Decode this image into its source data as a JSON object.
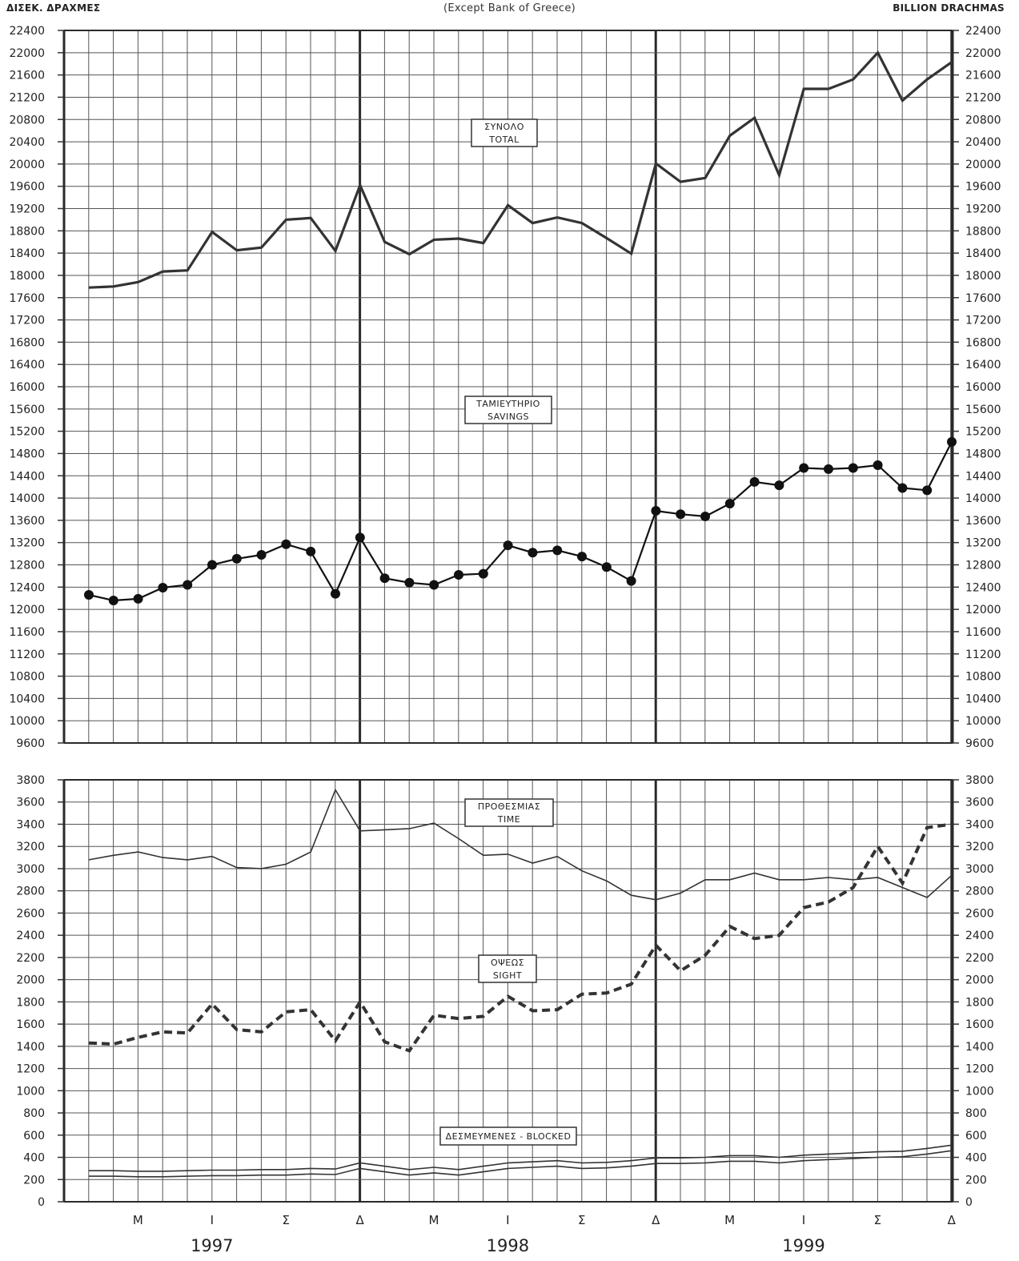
{
  "header": {
    "left_unit": "ΔΙΣΕΚ. ΔΡΑΧΜΕΣ",
    "subtitle": "(Except Bank of Greece)",
    "right_unit": "BILLION DRACHMAS"
  },
  "x_axis": {
    "month_labels": [
      "Μ",
      "Ι",
      "Σ",
      "Δ",
      "Μ",
      "Ι",
      "Σ",
      "Δ",
      "Μ",
      "Ι",
      "Σ",
      "Δ"
    ],
    "years": [
      "1997",
      "1998",
      "1999"
    ]
  },
  "chart_data": [
    {
      "type": "line",
      "panel": "top",
      "x": [
        "Jan 1997",
        "Feb 1997",
        "Mar 1997",
        "Apr 1997",
        "May 1997",
        "Jun 1997",
        "Jul 1997",
        "Aug 1997",
        "Sep 1997",
        "Oct 1997",
        "Nov 1997",
        "Dec 1997",
        "Jan 1998",
        "Feb 1998",
        "Mar 1998",
        "Apr 1998",
        "May 1998",
        "Jun 1998",
        "Jul 1998",
        "Aug 1998",
        "Sep 1998",
        "Oct 1998",
        "Nov 1998",
        "Dec 1998",
        "Jan 1999",
        "Feb 1999",
        "Mar 1999",
        "Apr 1999",
        "May 1999",
        "Jun 1999",
        "Jul 1999",
        "Aug 1999",
        "Sep 1999",
        "Oct 1999",
        "Nov 1999",
        "Dec 1999"
      ],
      "ylim": [
        9600,
        22400
      ],
      "yticks": [
        "22400",
        "22000",
        "21600",
        "21200",
        "20800",
        "20400",
        "20000",
        "19600",
        "19200",
        "18800",
        "18400",
        "18000",
        "17600",
        "17200",
        "16800",
        "16400",
        "16000",
        "15600",
        "15200",
        "14800",
        "14400",
        "14000",
        "13600",
        "13200",
        "12800",
        "12400",
        "12000",
        "11600",
        "11200",
        "10800",
        "10400",
        "10000",
        "9600"
      ],
      "grid": true,
      "series": [
        {
          "name": "ΣΥΝΟΛΟ TOTAL",
          "label_lines": [
            "ΣΥΝΟΛΟ",
            "TOTAL"
          ],
          "style": "thick",
          "values": [
            17780,
            17800,
            17880,
            18070,
            18090,
            18780,
            18450,
            18500,
            19000,
            19030,
            18440,
            19620,
            18600,
            18380,
            18640,
            18660,
            18580,
            19260,
            18940,
            19040,
            18940,
            18670,
            18390,
            20010,
            19680,
            19750,
            20510,
            20830,
            19800,
            21350,
            21350,
            21520,
            22000,
            21140,
            21520,
            21830
          ]
        },
        {
          "name": "ΤΑΜΙΕΥΤΗΡΙΟ SAVINGS",
          "label_lines": [
            "ΤΑΜΙΕΥΤΗΡΙΟ",
            "SAVINGS"
          ],
          "style": "markers",
          "values": [
            12260,
            12160,
            12190,
            12390,
            12440,
            12800,
            12910,
            12980,
            13170,
            13040,
            12280,
            13290,
            12560,
            12480,
            12440,
            12620,
            12640,
            13150,
            13020,
            13060,
            12950,
            12760,
            12510,
            13770,
            13710,
            13670,
            13900,
            14290,
            14230,
            14540,
            14520,
            14540,
            14590,
            14180,
            14140,
            15010
          ]
        }
      ]
    },
    {
      "type": "line",
      "panel": "bottom",
      "x": [
        "Jan 1997",
        "Feb 1997",
        "Mar 1997",
        "Apr 1997",
        "May 1997",
        "Jun 1997",
        "Jul 1997",
        "Aug 1997",
        "Sep 1997",
        "Oct 1997",
        "Nov 1997",
        "Dec 1997",
        "Jan 1998",
        "Feb 1998",
        "Mar 1998",
        "Apr 1998",
        "May 1998",
        "Jun 1998",
        "Jul 1998",
        "Aug 1998",
        "Sep 1998",
        "Oct 1998",
        "Nov 1998",
        "Dec 1998",
        "Jan 1999",
        "Feb 1999",
        "Mar 1999",
        "Apr 1999",
        "May 1999",
        "Jun 1999",
        "Jul 1999",
        "Aug 1999",
        "Sep 1999",
        "Oct 1999",
        "Nov 1999",
        "Dec 1999"
      ],
      "ylim": [
        0,
        3800
      ],
      "yticks": [
        "3800",
        "3600",
        "3400",
        "3200",
        "3000",
        "2800",
        "2600",
        "2400",
        "2200",
        "2000",
        "1800",
        "1600",
        "1400",
        "1200",
        "1000",
        "800",
        "600",
        "400",
        "200",
        "0"
      ],
      "grid": true,
      "series": [
        {
          "name": "ΠΡΟΘΕΣΜΙΑΣ TIME",
          "label_lines": [
            "ΠΡΟΘΕΣΜΙΑΣ",
            "TIME"
          ],
          "style": "thin",
          "values": [
            3080,
            3120,
            3150,
            3100,
            3080,
            3110,
            3010,
            3000,
            3040,
            3150,
            3710,
            3340,
            3350,
            3360,
            3410,
            3270,
            3120,
            3130,
            3050,
            3110,
            2980,
            2890,
            2760,
            2720,
            2780,
            2900,
            2900,
            2960,
            2900,
            2900,
            2920,
            2900,
            2920,
            2830,
            2740,
            2940
          ]
        },
        {
          "name": "ΟΨΕΩΣ SIGHT",
          "label_lines": [
            "ΟΨΕΩΣ",
            "SIGHT"
          ],
          "style": "dashed",
          "values": [
            1430,
            1420,
            1480,
            1530,
            1520,
            1780,
            1550,
            1530,
            1710,
            1730,
            1450,
            1800,
            1440,
            1360,
            1680,
            1650,
            1670,
            1850,
            1720,
            1730,
            1870,
            1880,
            1960,
            2310,
            2080,
            2220,
            2480,
            2370,
            2400,
            2650,
            2700,
            2830,
            3200,
            2870,
            3370,
            3400
          ]
        },
        {
          "name": "ΔΕΣΜΕΥΜΕΝΕΣ - BLOCKED",
          "label_lines": [
            "ΔΕΣΜΕΥΜΕΝΕΣ - BLOCKED"
          ],
          "style": "double",
          "values": [
            270,
            270,
            265,
            265,
            270,
            275,
            275,
            280,
            280,
            290,
            285,
            340,
            310,
            280,
            300,
            280,
            310,
            340,
            350,
            360,
            340,
            345,
            360,
            385,
            385,
            390,
            405,
            405,
            390,
            410,
            420,
            430,
            440,
            445,
            470,
            500
          ]
        }
      ]
    }
  ]
}
